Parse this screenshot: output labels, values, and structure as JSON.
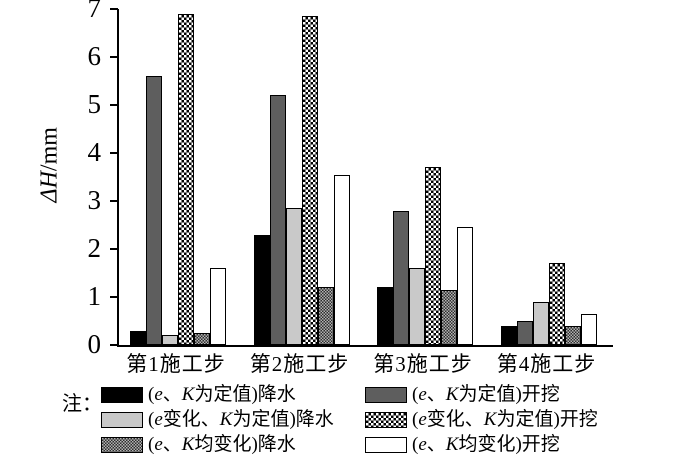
{
  "note_label": "注：",
  "chart_data": {
    "type": "bar",
    "title": "",
    "xlabel": "",
    "ylabel": "ΔH/mm",
    "ylim": [
      0,
      7
    ],
    "yticks": [
      0,
      1,
      2,
      3,
      4,
      5,
      6,
      7
    ],
    "grid": false,
    "legend_position": "bottom-two-columns",
    "categories": [
      "第1施工步",
      "第2施工步",
      "第3施工步",
      "第4施工步"
    ],
    "series": [
      {
        "name": "(e、K为定值)降水",
        "pattern": "black",
        "values": [
          0.3,
          2.3,
          1.2,
          0.4
        ]
      },
      {
        "name": "(e、K为定值)开挖",
        "pattern": "darkgray",
        "values": [
          5.6,
          5.2,
          2.8,
          0.5
        ]
      },
      {
        "name": "(e变化、K为定值)降水",
        "pattern": "lightgray",
        "values": [
          0.2,
          2.85,
          1.6,
          0.9
        ]
      },
      {
        "name": "(e变化、K为定值)开挖",
        "pattern": "checker",
        "values": [
          6.9,
          6.85,
          3.7,
          1.7
        ]
      },
      {
        "name": "(e、K均变化)降水",
        "pattern": "weave",
        "values": [
          0.25,
          1.2,
          1.15,
          0.4
        ]
      },
      {
        "name": "(e、K均变化)开挖",
        "pattern": "white",
        "values": [
          1.6,
          3.55,
          2.45,
          0.65
        ]
      }
    ],
    "legend_columns": [
      [
        0,
        2,
        4
      ],
      [
        1,
        3,
        5
      ]
    ]
  }
}
